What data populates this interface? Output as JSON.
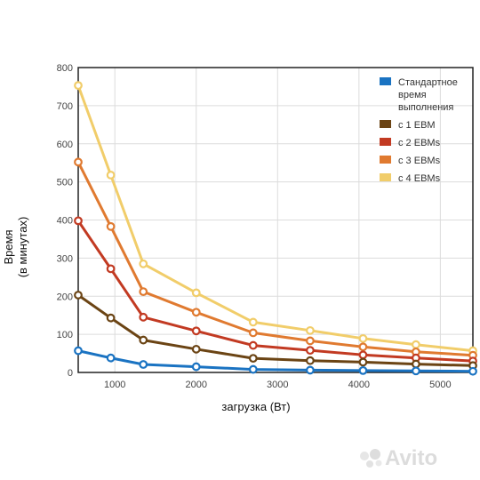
{
  "chart_data": {
    "type": "line",
    "title": "",
    "xlabel": "загрузка (Вт)",
    "ylabel_lines": [
      "Время",
      "(в минутах)"
    ],
    "x": [
      550,
      950,
      1350,
      2000,
      2700,
      3400,
      4050,
      4700,
      5400
    ],
    "xlim": [
      550,
      5400
    ],
    "ylim": [
      0,
      800
    ],
    "xticks": [
      "1000",
      "2000",
      "3000",
      "4000",
      "5000"
    ],
    "xtick_values": [
      1000,
      2000,
      3000,
      4000,
      5000
    ],
    "yticks": [
      "0",
      "100",
      "200",
      "300",
      "400",
      "500",
      "600",
      "700",
      "800"
    ],
    "ytick_values": [
      0,
      100,
      200,
      300,
      400,
      500,
      600,
      700,
      800
    ],
    "grid": true,
    "legend_position": "top-right",
    "series": [
      {
        "name": "Стандартное время выполнения",
        "legend_lines": [
          "Стандартное",
          "время",
          "выполнения"
        ],
        "color": "#1a73c2",
        "values": [
          57,
          38,
          21,
          15,
          8,
          6,
          5,
          4,
          3
        ]
      },
      {
        "name": "с 1 EBM",
        "legend_lines": [
          "с 1 EBM"
        ],
        "color": "#6b4414",
        "values": [
          203,
          143,
          85,
          61,
          37,
          31,
          27,
          22,
          18
        ]
      },
      {
        "name": "с 2 EBMs",
        "legend_lines": [
          "с 2 EBMs"
        ],
        "color": "#c23a22",
        "values": [
          398,
          272,
          145,
          109,
          71,
          58,
          46,
          38,
          30
        ]
      },
      {
        "name": "с 3 EBMs",
        "legend_lines": [
          "с 3 EBMs"
        ],
        "color": "#e07a30",
        "values": [
          552,
          383,
          212,
          158,
          104,
          83,
          67,
          54,
          45
        ]
      },
      {
        "name": "с 4 EBMs",
        "legend_lines": [
          "с 4 EBMs"
        ],
        "color": "#f1cd6a",
        "values": [
          753,
          518,
          285,
          209,
          132,
          110,
          89,
          73,
          57
        ]
      }
    ]
  },
  "watermark": "Avito"
}
